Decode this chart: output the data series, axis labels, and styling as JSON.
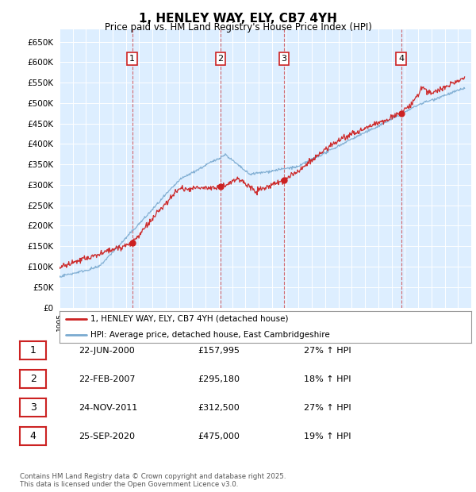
{
  "title": "1, HENLEY WAY, ELY, CB7 4YH",
  "subtitle": "Price paid vs. HM Land Registry's House Price Index (HPI)",
  "plot_bg_color": "#ddeeff",
  "ylim": [
    0,
    680000
  ],
  "yticks": [
    0,
    50000,
    100000,
    150000,
    200000,
    250000,
    300000,
    350000,
    400000,
    450000,
    500000,
    550000,
    600000,
    650000
  ],
  "hpi_color": "#7aaad0",
  "price_color": "#cc2222",
  "sale_year_nums": [
    2000.47,
    2007.13,
    2011.9,
    2020.73
  ],
  "sale_prices": [
    157995,
    295180,
    312500,
    475000
  ],
  "sale_labels": [
    "1",
    "2",
    "3",
    "4"
  ],
  "sale_table": [
    {
      "num": "1",
      "date": "22-JUN-2000",
      "price": "£157,995",
      "hpi": "27% ↑ HPI"
    },
    {
      "num": "2",
      "date": "22-FEB-2007",
      "price": "£295,180",
      "hpi": "18% ↑ HPI"
    },
    {
      "num": "3",
      "date": "24-NOV-2011",
      "price": "£312,500",
      "hpi": "27% ↑ HPI"
    },
    {
      "num": "4",
      "date": "25-SEP-2020",
      "price": "£475,000",
      "hpi": "19% ↑ HPI"
    }
  ],
  "legend_label_price": "1, HENLEY WAY, ELY, CB7 4YH (detached house)",
  "legend_label_hpi": "HPI: Average price, detached house, East Cambridgeshire",
  "footer": "Contains HM Land Registry data © Crown copyright and database right 2025.\nThis data is licensed under the Open Government Licence v3.0.",
  "xmin": 1995,
  "xmax": 2026,
  "seed": 42
}
